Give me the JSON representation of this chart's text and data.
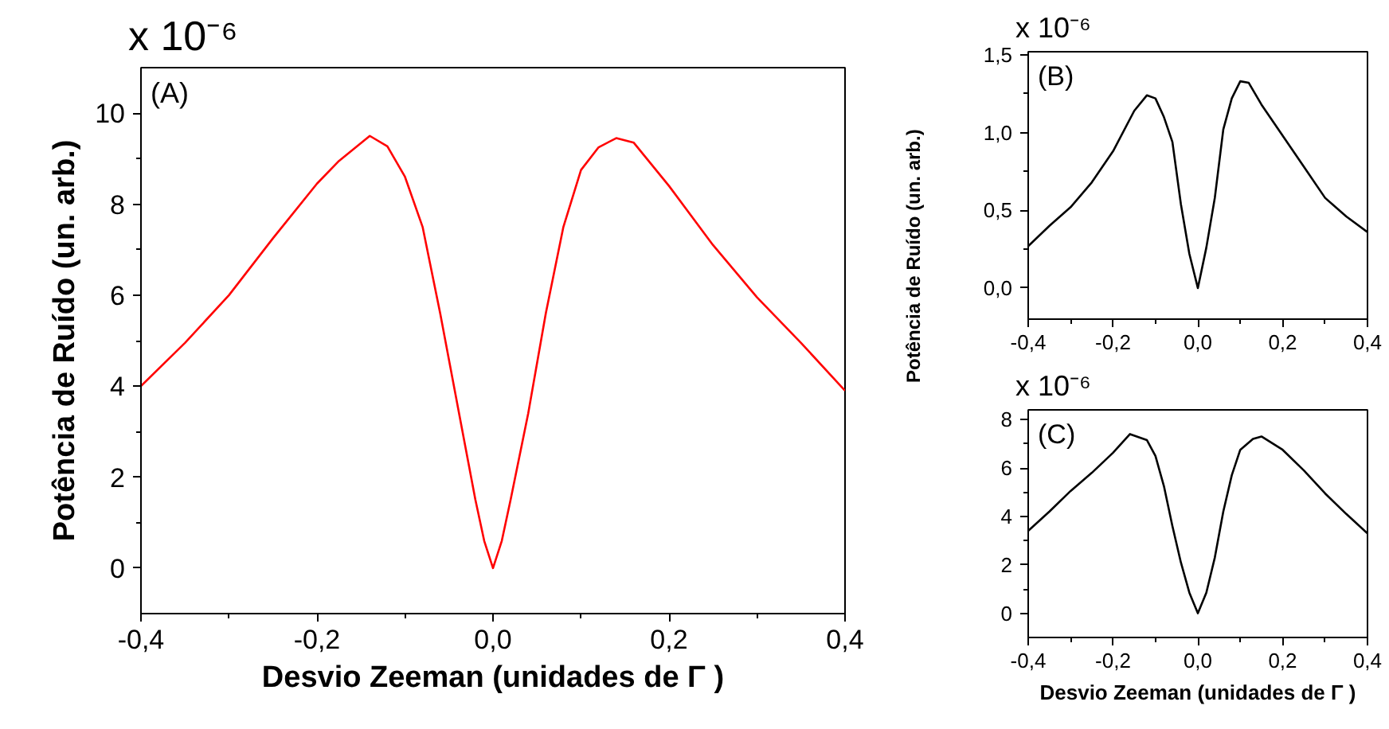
{
  "chart_data": [
    {
      "type": "line",
      "xlabel": "Desvio Zeeman (unidades de Γ )",
      "ylabel": "Potência de Ruído (un. arb.)",
      "annotations": [
        "x 10⁻⁶",
        "(A)"
      ],
      "x": [
        -0.4,
        -0.35,
        -0.3,
        -0.25,
        -0.2,
        -0.175,
        -0.14,
        -0.12,
        -0.1,
        -0.08,
        -0.06,
        -0.04,
        -0.02,
        -0.01,
        0,
        0.01,
        0.02,
        0.04,
        0.06,
        0.08,
        0.1,
        0.12,
        0.14,
        0.16,
        0.2,
        0.25,
        0.3,
        0.35,
        0.4
      ],
      "series": [
        {
          "color": "#ff0000",
          "values": [
            4.0,
            4.95,
            6.0,
            7.25,
            8.45,
            8.95,
            9.5,
            9.27,
            8.6,
            7.5,
            5.6,
            3.55,
            1.5,
            0.6,
            0,
            0.6,
            1.5,
            3.4,
            5.6,
            7.5,
            8.75,
            9.25,
            9.45,
            9.35,
            8.4,
            7.1,
            5.95,
            4.95,
            3.9
          ]
        }
      ],
      "xlim": [
        -0.4,
        0.4
      ],
      "ylim": [
        -1,
        11
      ],
      "xticks": [
        {
          "value": -0.4,
          "label": "-0,4"
        },
        {
          "value": -0.2,
          "label": "-0,2"
        },
        {
          "value": 0,
          "label": "0,0"
        },
        {
          "value": 0.2,
          "label": "0,2"
        },
        {
          "value": 0.4,
          "label": "0,4"
        }
      ],
      "yticks": [
        0,
        2,
        4,
        6,
        8,
        10
      ],
      "grid": false,
      "marker": "none",
      "line_style": "solid"
    },
    {
      "type": "line",
      "annotations": [
        "x 10⁻⁶",
        "(B)"
      ],
      "x": [
        -0.4,
        -0.35,
        -0.3,
        -0.25,
        -0.2,
        -0.15,
        -0.12,
        -0.1,
        -0.08,
        -0.06,
        -0.04,
        -0.02,
        0,
        0.02,
        0.04,
        0.06,
        0.08,
        0.1,
        0.12,
        0.15,
        0.2,
        0.25,
        0.3,
        0.35,
        0.4
      ],
      "series": [
        {
          "color": "#000000",
          "values": [
            0.27,
            0.4,
            0.52,
            0.68,
            0.88,
            1.14,
            1.24,
            1.22,
            1.1,
            0.94,
            0.54,
            0.22,
            0,
            0.26,
            0.58,
            1.02,
            1.22,
            1.33,
            1.32,
            1.18,
            0.98,
            0.78,
            0.58,
            0.46,
            0.36
          ]
        }
      ],
      "xlim": [
        -0.4,
        0.4
      ],
      "ylim": [
        -0.2,
        1.52
      ],
      "xticks": [
        {
          "value": -0.4,
          "label": "-0,4"
        },
        {
          "value": -0.2,
          "label": "-0,2"
        },
        {
          "value": 0,
          "label": "0,0"
        },
        {
          "value": 0.2,
          "label": "0,2"
        },
        {
          "value": 0.4,
          "label": "0,4"
        }
      ],
      "yticks": [
        {
          "value": 0,
          "label": "0,0"
        },
        {
          "value": 0.5,
          "label": "0,5"
        },
        {
          "value": 1,
          "label": "1,0"
        },
        {
          "value": 1.5,
          "label": "1,5"
        }
      ],
      "grid": false,
      "marker": "none",
      "line_style": "solid"
    },
    {
      "type": "line",
      "xlabel": "Desvio Zeeman (unidades de Γ )",
      "ylabel": "Potência de Ruído (un. arb.)",
      "annotations": [
        "x 10⁻⁶",
        "(C)"
      ],
      "x": [
        -0.4,
        -0.35,
        -0.3,
        -0.25,
        -0.2,
        -0.16,
        -0.12,
        -0.1,
        -0.08,
        -0.06,
        -0.04,
        -0.02,
        0,
        0.02,
        0.04,
        0.06,
        0.08,
        0.1,
        0.13,
        0.15,
        0.2,
        0.25,
        0.3,
        0.35,
        0.4
      ],
      "series": [
        {
          "color": "#000000",
          "values": [
            3.4,
            4.2,
            5.05,
            5.8,
            6.63,
            7.4,
            7.15,
            6.5,
            5.25,
            3.6,
            2.1,
            0.85,
            0,
            0.85,
            2.3,
            4.2,
            5.7,
            6.75,
            7.2,
            7.3,
            6.75,
            5.9,
            4.95,
            4.1,
            3.3
          ]
        }
      ],
      "xlim": [
        -0.4,
        0.4
      ],
      "ylim": [
        -1,
        8.4
      ],
      "xticks": [
        {
          "value": -0.4,
          "label": "-0,4"
        },
        {
          "value": -0.2,
          "label": "-0,2"
        },
        {
          "value": 0,
          "label": "0,0"
        },
        {
          "value": 0.2,
          "label": "0,2"
        },
        {
          "value": 0.4,
          "label": "0,4"
        }
      ],
      "yticks": [
        0,
        2,
        4,
        6,
        8
      ],
      "grid": false,
      "marker": "none",
      "line_style": "solid"
    }
  ]
}
